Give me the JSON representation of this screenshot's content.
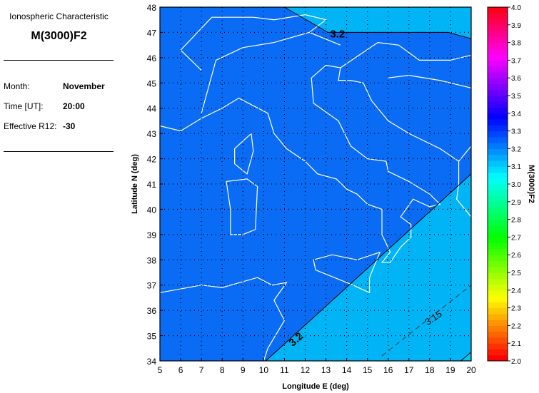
{
  "panel": {
    "subtitle": "Ionospheric Characteristic",
    "title": "M(3000)F2",
    "month_label": "Month:",
    "month": "November",
    "time_label": "Time [UT]:",
    "time": "20:00",
    "r12_label": "Effective R12:",
    "r12": "-30"
  },
  "chart_data": {
    "type": "contour-map",
    "xlabel": "Longitude E (deg)",
    "ylabel": "Latitude N (deg)",
    "xlim": [
      5,
      20
    ],
    "ylim": [
      34,
      48
    ],
    "xticks": [
      5,
      6,
      7,
      8,
      9,
      10,
      11,
      12,
      13,
      14,
      15,
      16,
      17,
      18,
      19,
      20
    ],
    "yticks": [
      34,
      35,
      36,
      37,
      38,
      39,
      40,
      41,
      42,
      43,
      44,
      45,
      46,
      47,
      48
    ],
    "grid": true,
    "colorbar": {
      "label": "M(3000)F2",
      "range": [
        2.0,
        4.0
      ],
      "ticks": [
        "2.0",
        "2.1",
        "2.2",
        "2.3",
        "2.4",
        "2.5",
        "2.6",
        "2.7",
        "2.8",
        "2.9",
        "3.0",
        "3.1",
        "3.2",
        "3.3",
        "3.4",
        "3.5",
        "3.6",
        "3.7",
        "3.8",
        "3.9",
        "4.0"
      ]
    },
    "fill_colors": {
      "above_3.2": "#0a6cf5",
      "below_3.2": "#00b4f5",
      "below_3.1": "#00c8f5"
    },
    "contours": [
      {
        "level": "3.2",
        "label": "3.2",
        "points": [
          [
            11.0,
            48
          ],
          [
            13.1,
            47.0
          ],
          [
            18.9,
            47.0
          ],
          [
            20,
            46.75
          ]
        ]
      },
      {
        "level": "3.2",
        "label": "3.2",
        "points": [
          [
            10.1,
            34
          ],
          [
            20,
            41.4
          ]
        ]
      },
      {
        "level": "3.15",
        "label": "3.15",
        "dashed": true,
        "points": [
          [
            15.7,
            34.2
          ],
          [
            20,
            37.0
          ]
        ]
      },
      {
        "level": "3.1",
        "points": [
          [
            19.5,
            34
          ],
          [
            20,
            34.35
          ]
        ]
      }
    ],
    "coastlines": [
      [
        [
          5,
          43.3
        ],
        [
          6,
          43.1
        ],
        [
          7,
          43.6
        ],
        [
          8,
          44.0
        ],
        [
          8.8,
          44.4
        ],
        [
          9.5,
          44.1
        ],
        [
          10.2,
          43.8
        ],
        [
          10.5,
          43.0
        ],
        [
          11.1,
          42.4
        ],
        [
          12.0,
          41.9
        ],
        [
          12.6,
          41.4
        ],
        [
          13.5,
          41.2
        ],
        [
          14.0,
          40.8
        ],
        [
          14.5,
          40.6
        ],
        [
          15.0,
          40.2
        ],
        [
          15.7,
          40.0
        ],
        [
          15.7,
          39.0
        ],
        [
          16.1,
          38.3
        ],
        [
          15.7,
          37.9
        ],
        [
          16.1,
          37.9
        ],
        [
          16.6,
          38.5
        ],
        [
          17.1,
          38.9
        ],
        [
          17.1,
          39.4
        ],
        [
          16.6,
          39.7
        ],
        [
          17.2,
          40.4
        ],
        [
          18.0,
          40.1
        ],
        [
          18.5,
          40.2
        ],
        [
          18.0,
          40.6
        ],
        [
          17.0,
          41.1
        ],
        [
          16.0,
          41.5
        ],
        [
          15.9,
          41.9
        ],
        [
          15.0,
          42.0
        ],
        [
          14.2,
          42.5
        ],
        [
          13.6,
          43.5
        ],
        [
          12.4,
          44.2
        ],
        [
          12.3,
          45.2
        ],
        [
          13.0,
          45.7
        ],
        [
          13.7,
          45.6
        ],
        [
          13.6,
          45.1
        ],
        [
          14.2,
          45.1
        ],
        [
          14.8,
          45.0
        ],
        [
          15.2,
          44.3
        ],
        [
          16.0,
          43.5
        ],
        [
          17.0,
          43.0
        ],
        [
          18.5,
          42.4
        ],
        [
          19.4,
          41.9
        ],
        [
          19.4,
          41.0
        ],
        [
          19.3,
          40.4
        ],
        [
          20,
          39.7
        ]
      ],
      [
        [
          12.4,
          38.0
        ],
        [
          13.3,
          38.2
        ],
        [
          14.5,
          38.0
        ],
        [
          15.6,
          38.3
        ],
        [
          15.1,
          37.3
        ],
        [
          15.1,
          36.7
        ],
        [
          14.3,
          37.0
        ],
        [
          12.5,
          37.6
        ],
        [
          12.4,
          38.0
        ]
      ],
      [
        [
          8.2,
          41.1
        ],
        [
          9.2,
          41.2
        ],
        [
          9.7,
          40.9
        ],
        [
          9.6,
          39.2
        ],
        [
          9.0,
          39.0
        ],
        [
          8.4,
          39.0
        ],
        [
          8.4,
          40.0
        ],
        [
          8.2,
          41.1
        ]
      ],
      [
        [
          9.4,
          43.0
        ],
        [
          9.5,
          42.3
        ],
        [
          9.2,
          41.4
        ],
        [
          8.6,
          41.8
        ],
        [
          8.6,
          42.4
        ],
        [
          9.4,
          43.0
        ]
      ],
      [
        [
          5,
          36.7
        ],
        [
          7,
          37.0
        ],
        [
          8,
          36.9
        ],
        [
          9.7,
          37.3
        ],
        [
          10.4,
          37.0
        ],
        [
          11.1,
          37.1
        ],
        [
          10.5,
          36.4
        ],
        [
          11.0,
          35.6
        ],
        [
          10.2,
          34.5
        ],
        [
          10.0,
          34.0
        ]
      ],
      [
        [
          7.0,
          43.8
        ],
        [
          7.7,
          45.9
        ],
        [
          9.0,
          46.4
        ],
        [
          10.5,
          46.6
        ],
        [
          12.2,
          47.0
        ],
        [
          13.7,
          46.5
        ]
      ],
      [
        [
          12.2,
          47.0
        ],
        [
          13.0,
          47.5
        ],
        [
          12.0,
          47.7
        ],
        [
          10.5,
          47.5
        ],
        [
          9.5,
          47.6
        ],
        [
          7.5,
          47.6
        ],
        [
          6.0,
          46.3
        ],
        [
          7.0,
          45.5
        ]
      ],
      [
        [
          13.7,
          45.6
        ],
        [
          15.5,
          46.6
        ],
        [
          16.5,
          46.5
        ],
        [
          17.5,
          45.9
        ],
        [
          19.0,
          45.9
        ],
        [
          20,
          46.1
        ]
      ],
      [
        [
          16.0,
          45.2
        ],
        [
          17.0,
          45.3
        ],
        [
          18.5,
          45.1
        ],
        [
          19.5,
          44.9
        ],
        [
          20,
          44.8
        ]
      ],
      [
        [
          19.4,
          41.9
        ],
        [
          20,
          42.5
        ]
      ]
    ]
  }
}
